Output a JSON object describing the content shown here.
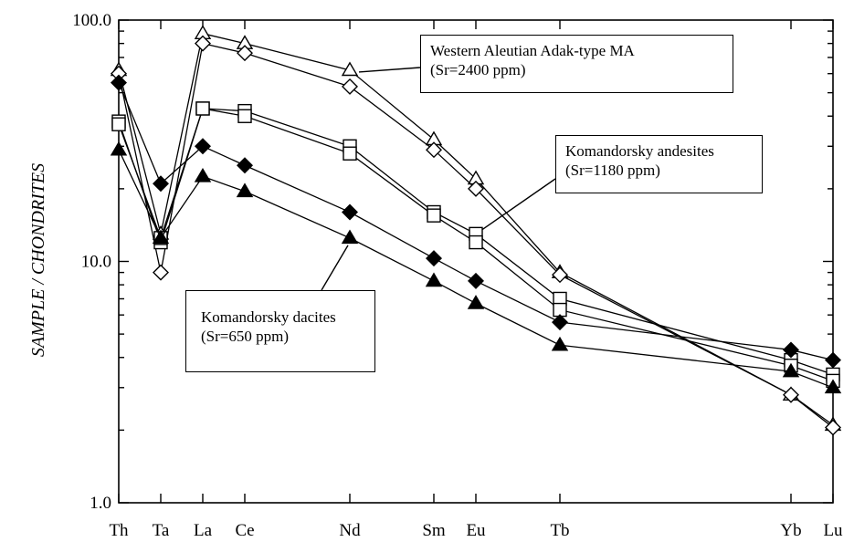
{
  "chart_data": {
    "type": "line",
    "title": "",
    "ylabel": "SAMPLE / CHONDRITES",
    "xlabel": "",
    "yscale": "log",
    "ylim": [
      1.0,
      100.0
    ],
    "ytick_labels": [
      "1.0",
      "10.0",
      "100.0"
    ],
    "categories": [
      "Th",
      "Ta",
      "La",
      "Ce",
      "Nd",
      "Sm",
      "Eu",
      "Tb",
      "Yb",
      "Lu"
    ],
    "x_positions": [
      0,
      1,
      2,
      3,
      5.5,
      7.5,
      8.5,
      10.5,
      16,
      17
    ],
    "grid": false,
    "legend": "none",
    "series": [
      {
        "marker": "open-triangle",
        "values": [
          62,
          13,
          88,
          80,
          62,
          32,
          22,
          9,
          2.8,
          2.1
        ]
      },
      {
        "marker": "open-diamond",
        "values": [
          60,
          9,
          80,
          73,
          53,
          29,
          20,
          8.8,
          2.8,
          2.05
        ]
      },
      {
        "marker": "open-square",
        "values": [
          38,
          12,
          43,
          42,
          30,
          16,
          13,
          7,
          3.9,
          3.4
        ]
      },
      {
        "marker": "open-square",
        "values": [
          37,
          12.5,
          43,
          40,
          28,
          15.5,
          12,
          6.3,
          3.7,
          3.2
        ]
      },
      {
        "marker": "filled-diamond",
        "values": [
          55,
          21,
          30,
          25,
          16,
          10.3,
          8.3,
          5.6,
          4.3,
          3.9
        ]
      },
      {
        "marker": "filled-triangle",
        "values": [
          29,
          12.5,
          22.5,
          19.5,
          12.5,
          8.3,
          6.7,
          4.5,
          3.5,
          3.0
        ]
      }
    ],
    "annotations": [
      {
        "lines": [
          "Western Aleutian Adak-type MA",
          "(Sr=2400 ppm)"
        ]
      },
      {
        "lines": [
          "Komandorsky andesites",
          "(Sr=1180 ppm)"
        ]
      },
      {
        "lines": [
          "Komandorsky dacites",
          "(Sr=650 ppm)"
        ]
      }
    ]
  }
}
